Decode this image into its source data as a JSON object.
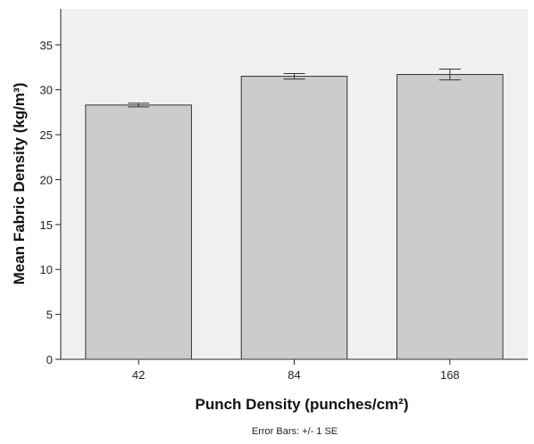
{
  "chart_data": {
    "type": "bar",
    "xlabel": "Punch Density (punches/cm²)",
    "ylabel": "Mean Fabric Density (kg/m³)",
    "categories": [
      "42",
      "84",
      "168"
    ],
    "values": [
      28.3,
      31.5,
      31.7
    ],
    "error_bars": {
      "label": "Error Bars: +/- 1 SE",
      "se": [
        0.2,
        0.3,
        0.6
      ]
    },
    "ylim": [
      0,
      39
    ],
    "yticks": [
      0,
      5,
      10,
      15,
      20,
      25,
      30,
      35
    ],
    "grid": false,
    "legend": "none",
    "colors": {
      "plot_background": "#f0f0f0",
      "bar_fill": "#cccccc",
      "bar_stroke": "#333333",
      "axis": "#222222"
    }
  }
}
